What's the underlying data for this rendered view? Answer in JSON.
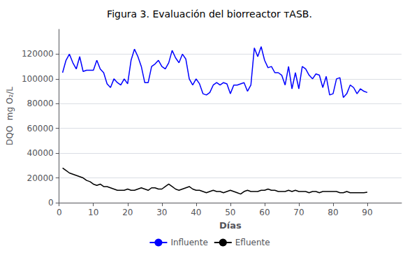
{
  "chart_data": {
    "type": "line",
    "title": "Figura 3. Evaluación del biorreactor ᴛASB.",
    "xlabel": "Días",
    "ylabel": "DQO  mg O₂/L",
    "xlim": [
      0,
      100
    ],
    "ylim": [
      0,
      140000
    ],
    "xticks": [
      0,
      10,
      20,
      30,
      40,
      50,
      60,
      70,
      80,
      90
    ],
    "yticks": [
      0,
      20000,
      40000,
      60000,
      80000,
      100000,
      120000
    ],
    "grid": true,
    "legend": "bottom",
    "x": [
      1,
      2,
      3,
      4,
      5,
      6,
      7,
      8,
      9,
      10,
      11,
      12,
      13,
      14,
      15,
      16,
      17,
      18,
      19,
      20,
      21,
      22,
      23,
      24,
      25,
      26,
      27,
      28,
      29,
      30,
      31,
      32,
      33,
      34,
      35,
      36,
      37,
      38,
      39,
      40,
      41,
      42,
      43,
      44,
      45,
      46,
      47,
      48,
      49,
      50,
      51,
      52,
      53,
      54,
      55,
      56,
      57,
      58,
      59,
      60,
      61,
      62,
      63,
      64,
      65,
      66,
      67,
      68,
      69,
      70,
      71,
      72,
      73,
      74,
      75,
      76,
      77,
      78,
      79,
      80,
      81,
      82,
      83,
      84,
      85,
      86,
      87,
      88,
      89,
      90
    ],
    "series": [
      {
        "name": "Influente",
        "color": "#0000ff",
        "values": [
          105000,
          115000,
          120000,
          113000,
          108000,
          118000,
          106000,
          107000,
          107000,
          107000,
          115000,
          108000,
          105000,
          96000,
          93000,
          100000,
          97000,
          95000,
          100000,
          96000,
          115000,
          124000,
          118000,
          110000,
          97000,
          97000,
          110000,
          112000,
          115000,
          110000,
          108000,
          113000,
          123000,
          117000,
          113000,
          120000,
          116000,
          100000,
          95000,
          100000,
          96000,
          88000,
          87000,
          89000,
          95000,
          97000,
          95000,
          97000,
          96000,
          88000,
          95000,
          95000,
          96000,
          97000,
          90000,
          95000,
          125000,
          118000,
          126000,
          115000,
          109000,
          110000,
          105000,
          105000,
          103000,
          95000,
          110000,
          92000,
          105000,
          92000,
          110000,
          108000,
          103000,
          100000,
          104000,
          103000,
          93000,
          102000,
          87000,
          88000,
          100000,
          101000,
          85000,
          88000,
          95000,
          93000,
          88000,
          92000,
          90000,
          89000
        ]
      },
      {
        "name": "Efluente",
        "color": "#000000",
        "values": [
          28000,
          26000,
          24000,
          23000,
          22000,
          21000,
          20000,
          18000,
          17000,
          15000,
          14000,
          15000,
          13000,
          13000,
          12000,
          11000,
          10000,
          10000,
          10000,
          11000,
          10000,
          10000,
          11000,
          12000,
          11000,
          10000,
          12000,
          12000,
          11000,
          11000,
          13000,
          15000,
          13000,
          11000,
          10000,
          11000,
          12000,
          13000,
          11000,
          10000,
          10000,
          9000,
          8000,
          9000,
          10000,
          9000,
          9000,
          8000,
          9000,
          10000,
          9000,
          8000,
          7000,
          9000,
          10000,
          9000,
          9000,
          9000,
          10000,
          10000,
          11000,
          10000,
          10000,
          9000,
          9000,
          9000,
          10000,
          9000,
          10000,
          9000,
          9000,
          9000,
          8000,
          9000,
          9000,
          8000,
          9000,
          9000,
          9000,
          9000,
          9000,
          8000,
          8000,
          9000,
          8000,
          8000,
          8000,
          8000,
          8000,
          8500
        ]
      }
    ]
  }
}
